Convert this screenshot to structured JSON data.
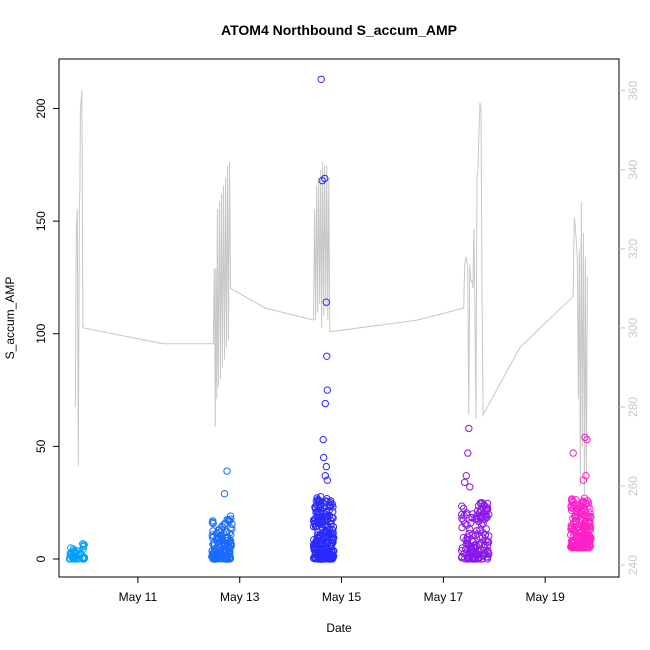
{
  "chart_data": {
    "type": "scatter",
    "title": "ATOM4 Northbound S_accum_AMP",
    "xlabel": "Date",
    "ylabel": "S_accum_AMP",
    "right_ylabel": "",
    "x_ticks": [
      "May 11",
      "May 13",
      "May 15",
      "May 17",
      "May 19"
    ],
    "x_tick_days": [
      11,
      13,
      15,
      17,
      19
    ],
    "xlim": [
      9.45,
      20.45
    ],
    "y_ticks": [
      0,
      50,
      100,
      150,
      200
    ],
    "ylim": [
      -8,
      222
    ],
    "right_y_ticks": [
      240,
      260,
      280,
      300,
      320,
      340,
      360
    ],
    "right_ylim": [
      237,
      368
    ],
    "right_axis_color": "#c8c8c8",
    "grid": false,
    "legend": "none",
    "line_series": {
      "color": "#c8c8c8",
      "points": [
        [
          9.77,
          280
        ],
        [
          9.79,
          325
        ],
        [
          9.81,
          330
        ],
        [
          9.83,
          265
        ],
        [
          9.85,
          330
        ],
        [
          9.86,
          335
        ],
        [
          9.87,
          355
        ],
        [
          9.9,
          360
        ],
        [
          9.92,
          300
        ],
        [
          11.5,
          296
        ],
        [
          12.48,
          296
        ],
        [
          12.5,
          315
        ],
        [
          12.52,
          275
        ],
        [
          12.53,
          315
        ],
        [
          12.55,
          282
        ],
        [
          12.56,
          330
        ],
        [
          12.58,
          285
        ],
        [
          12.6,
          332
        ],
        [
          12.62,
          287
        ],
        [
          12.64,
          334
        ],
        [
          12.66,
          290
        ],
        [
          12.68,
          336
        ],
        [
          12.7,
          292
        ],
        [
          12.72,
          338
        ],
        [
          12.74,
          295
        ],
        [
          12.76,
          341
        ],
        [
          12.78,
          297
        ],
        [
          12.8,
          342
        ],
        [
          12.82,
          310
        ],
        [
          13.5,
          305
        ],
        [
          14.45,
          302
        ],
        [
          14.47,
          330
        ],
        [
          14.49,
          302
        ],
        [
          14.51,
          336
        ],
        [
          14.53,
          304
        ],
        [
          14.55,
          338
        ],
        [
          14.57,
          306
        ],
        [
          14.59,
          340
        ],
        [
          14.61,
          300
        ],
        [
          14.63,
          342
        ],
        [
          14.65,
          303
        ],
        [
          14.67,
          341
        ],
        [
          14.69,
          305
        ],
        [
          14.71,
          341
        ],
        [
          14.73,
          302
        ],
        [
          14.75,
          338
        ],
        [
          14.77,
          299
        ],
        [
          16.5,
          302
        ],
        [
          17.4,
          305
        ],
        [
          17.42,
          316
        ],
        [
          17.44,
          318
        ],
        [
          17.46,
          317
        ],
        [
          17.48,
          315
        ],
        [
          17.5,
          278
        ],
        [
          17.52,
          316
        ],
        [
          17.54,
          312
        ],
        [
          17.56,
          312
        ],
        [
          17.58,
          310
        ],
        [
          17.6,
          325
        ],
        [
          17.62,
          306
        ],
        [
          17.64,
          277
        ],
        [
          17.66,
          338
        ],
        [
          17.68,
          340
        ],
        [
          17.7,
          350
        ],
        [
          17.72,
          357
        ],
        [
          17.74,
          355
        ],
        [
          17.76,
          306
        ],
        [
          17.78,
          278
        ],
        [
          18.5,
          295
        ],
        [
          19.55,
          308
        ],
        [
          19.57,
          328
        ],
        [
          19.59,
          326
        ],
        [
          19.61,
          322
        ],
        [
          19.63,
          318
        ],
        [
          19.65,
          282
        ],
        [
          19.67,
          320
        ],
        [
          19.69,
          260
        ],
        [
          19.71,
          332
        ],
        [
          19.73,
          270
        ],
        [
          19.75,
          324
        ],
        [
          19.77,
          258
        ],
        [
          19.79,
          318
        ],
        [
          19.81,
          262
        ],
        [
          19.83,
          313
        ]
      ]
    },
    "scatter_series": [
      {
        "color": "#00a0ff",
        "cluster": [
          9.65,
          9.95,
          0,
          7
        ],
        "count": 45,
        "extra": []
      },
      {
        "color": "#1a6cff",
        "cluster": [
          12.45,
          12.85,
          0,
          18
        ],
        "count": 150,
        "extra": [
          [
            12.75,
            39
          ],
          [
            12.7,
            29
          ],
          [
            12.82,
            19
          ],
          [
            12.78,
            17
          ]
        ]
      },
      {
        "color": "#2a2aff",
        "cluster": [
          14.45,
          14.85,
          0,
          28
        ],
        "count": 260,
        "extra": [
          [
            14.6,
            213
          ],
          [
            14.62,
            168
          ],
          [
            14.67,
            169
          ],
          [
            14.7,
            114
          ],
          [
            14.71,
            90
          ],
          [
            14.72,
            75
          ],
          [
            14.68,
            69
          ],
          [
            14.64,
            53
          ],
          [
            14.65,
            45
          ],
          [
            14.7,
            41
          ],
          [
            14.68,
            37
          ],
          [
            14.72,
            35
          ]
        ]
      },
      {
        "color": "#8a18e8",
        "cluster": [
          17.35,
          17.9,
          0,
          25
        ],
        "count": 150,
        "extra": [
          [
            17.5,
            58
          ],
          [
            17.48,
            47
          ],
          [
            17.45,
            37
          ],
          [
            17.52,
            32
          ],
          [
            17.42,
            34
          ]
        ]
      },
      {
        "color": "#ff20c8",
        "cluster": [
          19.5,
          19.9,
          5,
          27
        ],
        "count": 200,
        "extra": [
          [
            19.55,
            47
          ],
          [
            19.78,
            54
          ],
          [
            19.82,
            53
          ],
          [
            19.8,
            37
          ],
          [
            19.75,
            35
          ]
        ]
      }
    ]
  }
}
